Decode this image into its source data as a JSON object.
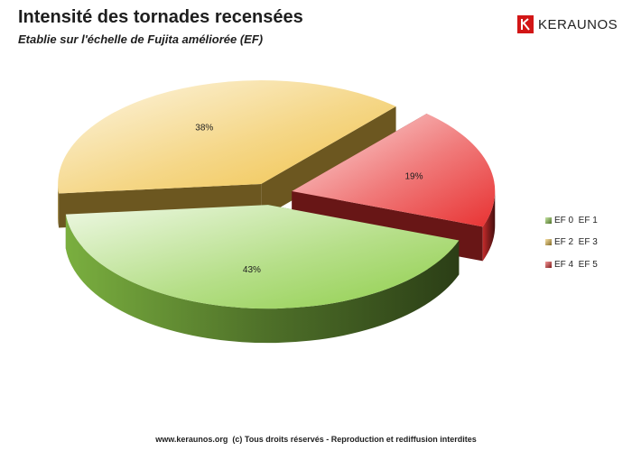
{
  "header": {
    "title": "Intensité des tornades recensées",
    "subtitle": "Etablie sur l'échelle de Fujita améliorée (EF)"
  },
  "brand": {
    "name": "KERAUNOS",
    "logo_icon": "keraunos-logo-icon",
    "color": "#d21616"
  },
  "chart_data": {
    "type": "pie",
    "style": "3d-exploded",
    "labels": [
      "EF 0  EF 1",
      "EF 2  EF 3",
      "EF 4  EF 5"
    ],
    "values": [
      43,
      38,
      19
    ],
    "data_labels": [
      "43%",
      "38%",
      "19%"
    ],
    "colors": [
      "#8fce4a",
      "#f0c248",
      "#e83232"
    ],
    "legend_position": "right"
  },
  "footer": {
    "text": "www.keraunos.org  (c) Tous droits réservés - Reproduction et rediffusion interdites"
  }
}
